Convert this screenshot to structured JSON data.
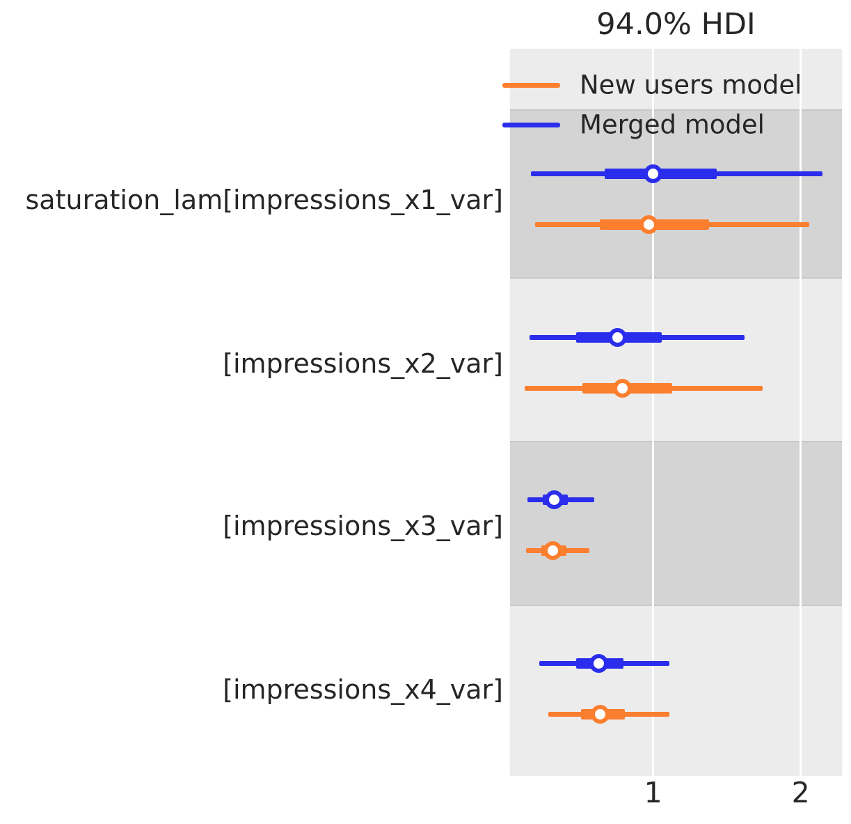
{
  "title": "94.0% HDI",
  "colors": {
    "new_users_model": "#fc7e2f",
    "merged_model": "#2a2eec",
    "axes_background": "#ececec",
    "shaded_band": "#d4d4d4",
    "gridline": "#ffffff",
    "text": "#262626"
  },
  "chart_data": {
    "type": "forest",
    "title": "94.0% HDI",
    "hdi_probability": "94.0%",
    "xlabel": "",
    "ylabel": "",
    "x_ticks": [
      1,
      2
    ],
    "x_range": [
      0.03,
      2.28
    ],
    "grid": "vertical-white-on-gray",
    "legend_position": "upper-left-inside",
    "legend": [
      {
        "label": "New users model",
        "color": "#fc7e2f"
      },
      {
        "label": "Merged model",
        "color": "#2a2eec"
      }
    ],
    "rows": [
      {
        "label": "saturation_lam[impressions_x1_var]",
        "shaded": true,
        "estimates": [
          {
            "model": "Merged model",
            "color": "#2a2eec",
            "hdi": [
              0.17,
              2.15
            ],
            "quartile": [
              0.67,
              1.43
            ],
            "median": 1.0
          },
          {
            "model": "New users model",
            "color": "#fc7e2f",
            "hdi": [
              0.2,
              2.06
            ],
            "quartile": [
              0.64,
              1.38
            ],
            "median": 0.97
          }
        ]
      },
      {
        "label": "[impressions_x2_var]",
        "shaded": false,
        "estimates": [
          {
            "model": "Merged model",
            "color": "#2a2eec",
            "hdi": [
              0.16,
              1.62
            ],
            "quartile": [
              0.48,
              1.06
            ],
            "median": 0.76
          },
          {
            "model": "New users model",
            "color": "#fc7e2f",
            "hdi": [
              0.13,
              1.74
            ],
            "quartile": [
              0.52,
              1.13
            ],
            "median": 0.79
          }
        ]
      },
      {
        "label": "[impressions_x3_var]",
        "shaded": true,
        "estimates": [
          {
            "model": "Merged model",
            "color": "#2a2eec",
            "hdi": [
              0.15,
              0.6
            ],
            "quartile": [
              0.25,
              0.42
            ],
            "median": 0.33
          },
          {
            "model": "New users model",
            "color": "#fc7e2f",
            "hdi": [
              0.14,
              0.57
            ],
            "quartile": [
              0.24,
              0.41
            ],
            "median": 0.32
          }
        ]
      },
      {
        "label": "[impressions_x4_var]",
        "shaded": false,
        "estimates": [
          {
            "model": "Merged model",
            "color": "#2a2eec",
            "hdi": [
              0.23,
              1.11
            ],
            "quartile": [
              0.48,
              0.8
            ],
            "median": 0.63
          },
          {
            "model": "New users model",
            "color": "#fc7e2f",
            "hdi": [
              0.29,
              1.11
            ],
            "quartile": [
              0.51,
              0.81
            ],
            "median": 0.64
          }
        ]
      }
    ]
  }
}
